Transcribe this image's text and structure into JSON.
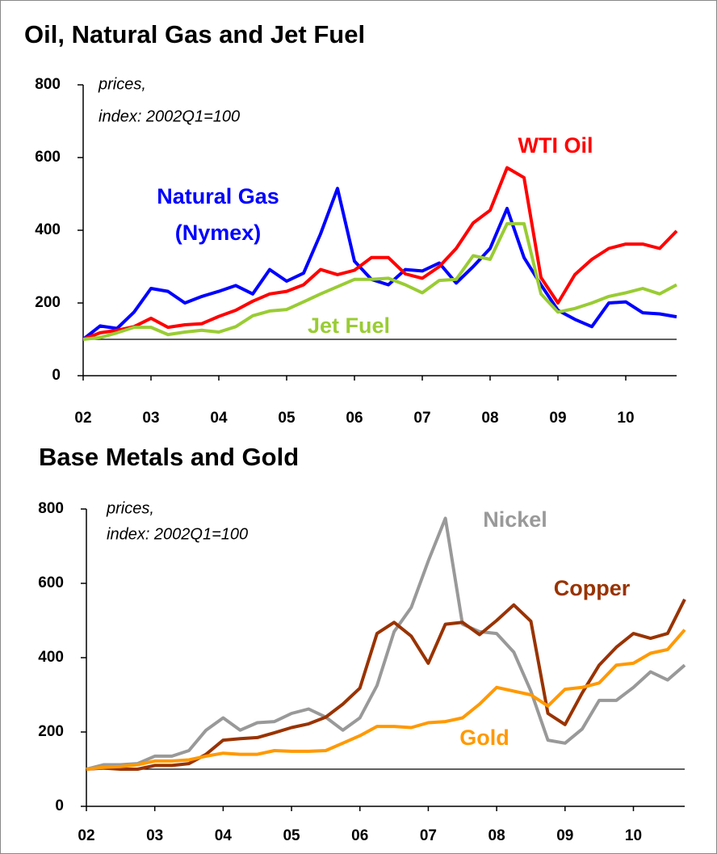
{
  "chart_data": [
    {
      "type": "line",
      "title": "Oil, Natural Gas and Jet Fuel",
      "notes": [
        "prices,",
        "index: 2002Q1=100"
      ],
      "categories": [
        "02",
        null,
        null,
        null,
        "03",
        null,
        null,
        null,
        "04",
        null,
        null,
        null,
        "05",
        null,
        null,
        null,
        "06",
        null,
        null,
        null,
        "07",
        null,
        null,
        null,
        "08",
        null,
        null,
        null,
        "09",
        null,
        null,
        null,
        "10",
        null,
        null,
        null
      ],
      "series": [
        {
          "name": "Natural Gas (Nymex)",
          "color": "#0000ff",
          "values": [
            100,
            137,
            130,
            175,
            240,
            232,
            200,
            218,
            232,
            248,
            225,
            292,
            260,
            282,
            390,
            515,
            315,
            265,
            250,
            292,
            288,
            310,
            255,
            300,
            350,
            460,
            325,
            250,
            180,
            155,
            135,
            200,
            203,
            173,
            170,
            162
          ]
        },
        {
          "name": "WTI Oil",
          "color": "#ff0000",
          "values": [
            100,
            118,
            125,
            135,
            158,
            133,
            140,
            143,
            163,
            180,
            205,
            225,
            232,
            250,
            292,
            278,
            290,
            325,
            325,
            280,
            268,
            300,
            350,
            420,
            455,
            572,
            545,
            270,
            200,
            278,
            320,
            350,
            362,
            362,
            350,
            398
          ]
        },
        {
          "name": "Jet Fuel",
          "color": "#99cc33",
          "values": [
            100,
            105,
            118,
            133,
            133,
            113,
            120,
            125,
            120,
            135,
            165,
            178,
            182,
            203,
            225,
            245,
            265,
            265,
            268,
            250,
            228,
            262,
            265,
            330,
            320,
            418,
            418,
            225,
            175,
            185,
            200,
            218,
            228,
            240,
            225,
            250
          ]
        }
      ],
      "ylim": [
        0,
        800
      ],
      "yticks": [
        0,
        200,
        400,
        600,
        800
      ],
      "hline": 100
    },
    {
      "type": "line",
      "title": "Base Metals and Gold",
      "notes": [
        "prices,",
        "index: 2002Q1=100"
      ],
      "categories": [
        "02",
        null,
        null,
        null,
        "03",
        null,
        null,
        null,
        "04",
        null,
        null,
        null,
        "05",
        null,
        null,
        null,
        "06",
        null,
        null,
        null,
        "07",
        null,
        null,
        null,
        "08",
        null,
        null,
        null,
        "09",
        null,
        null,
        null,
        "10",
        null,
        null,
        null
      ],
      "series": [
        {
          "name": "Nickel",
          "color": "#999999",
          "values": [
            100,
            112,
            112,
            115,
            135,
            135,
            150,
            205,
            238,
            205,
            225,
            228,
            250,
            262,
            240,
            205,
            238,
            325,
            470,
            535,
            660,
            775,
            490,
            470,
            465,
            415,
            310,
            178,
            170,
            208,
            285,
            285,
            320,
            362,
            340,
            380
          ]
        },
        {
          "name": "Copper",
          "color": "#993300",
          "values": [
            100,
            103,
            100,
            100,
            110,
            110,
            115,
            140,
            178,
            182,
            185,
            198,
            212,
            222,
            240,
            275,
            318,
            465,
            495,
            458,
            385,
            490,
            495,
            462,
            500,
            542,
            498,
            250,
            220,
            305,
            380,
            428,
            465,
            452,
            465,
            557
          ]
        },
        {
          "name": "Gold",
          "color": "#ff9900",
          "values": [
            100,
            105,
            107,
            112,
            122,
            122,
            125,
            135,
            143,
            140,
            140,
            150,
            148,
            148,
            150,
            170,
            190,
            215,
            215,
            212,
            225,
            228,
            238,
            275,
            320,
            310,
            300,
            270,
            315,
            320,
            332,
            380,
            385,
            412,
            422,
            475
          ]
        }
      ],
      "ylim": [
        0,
        800
      ],
      "yticks": [
        0,
        200,
        400,
        600,
        800
      ],
      "hline": 100
    }
  ]
}
